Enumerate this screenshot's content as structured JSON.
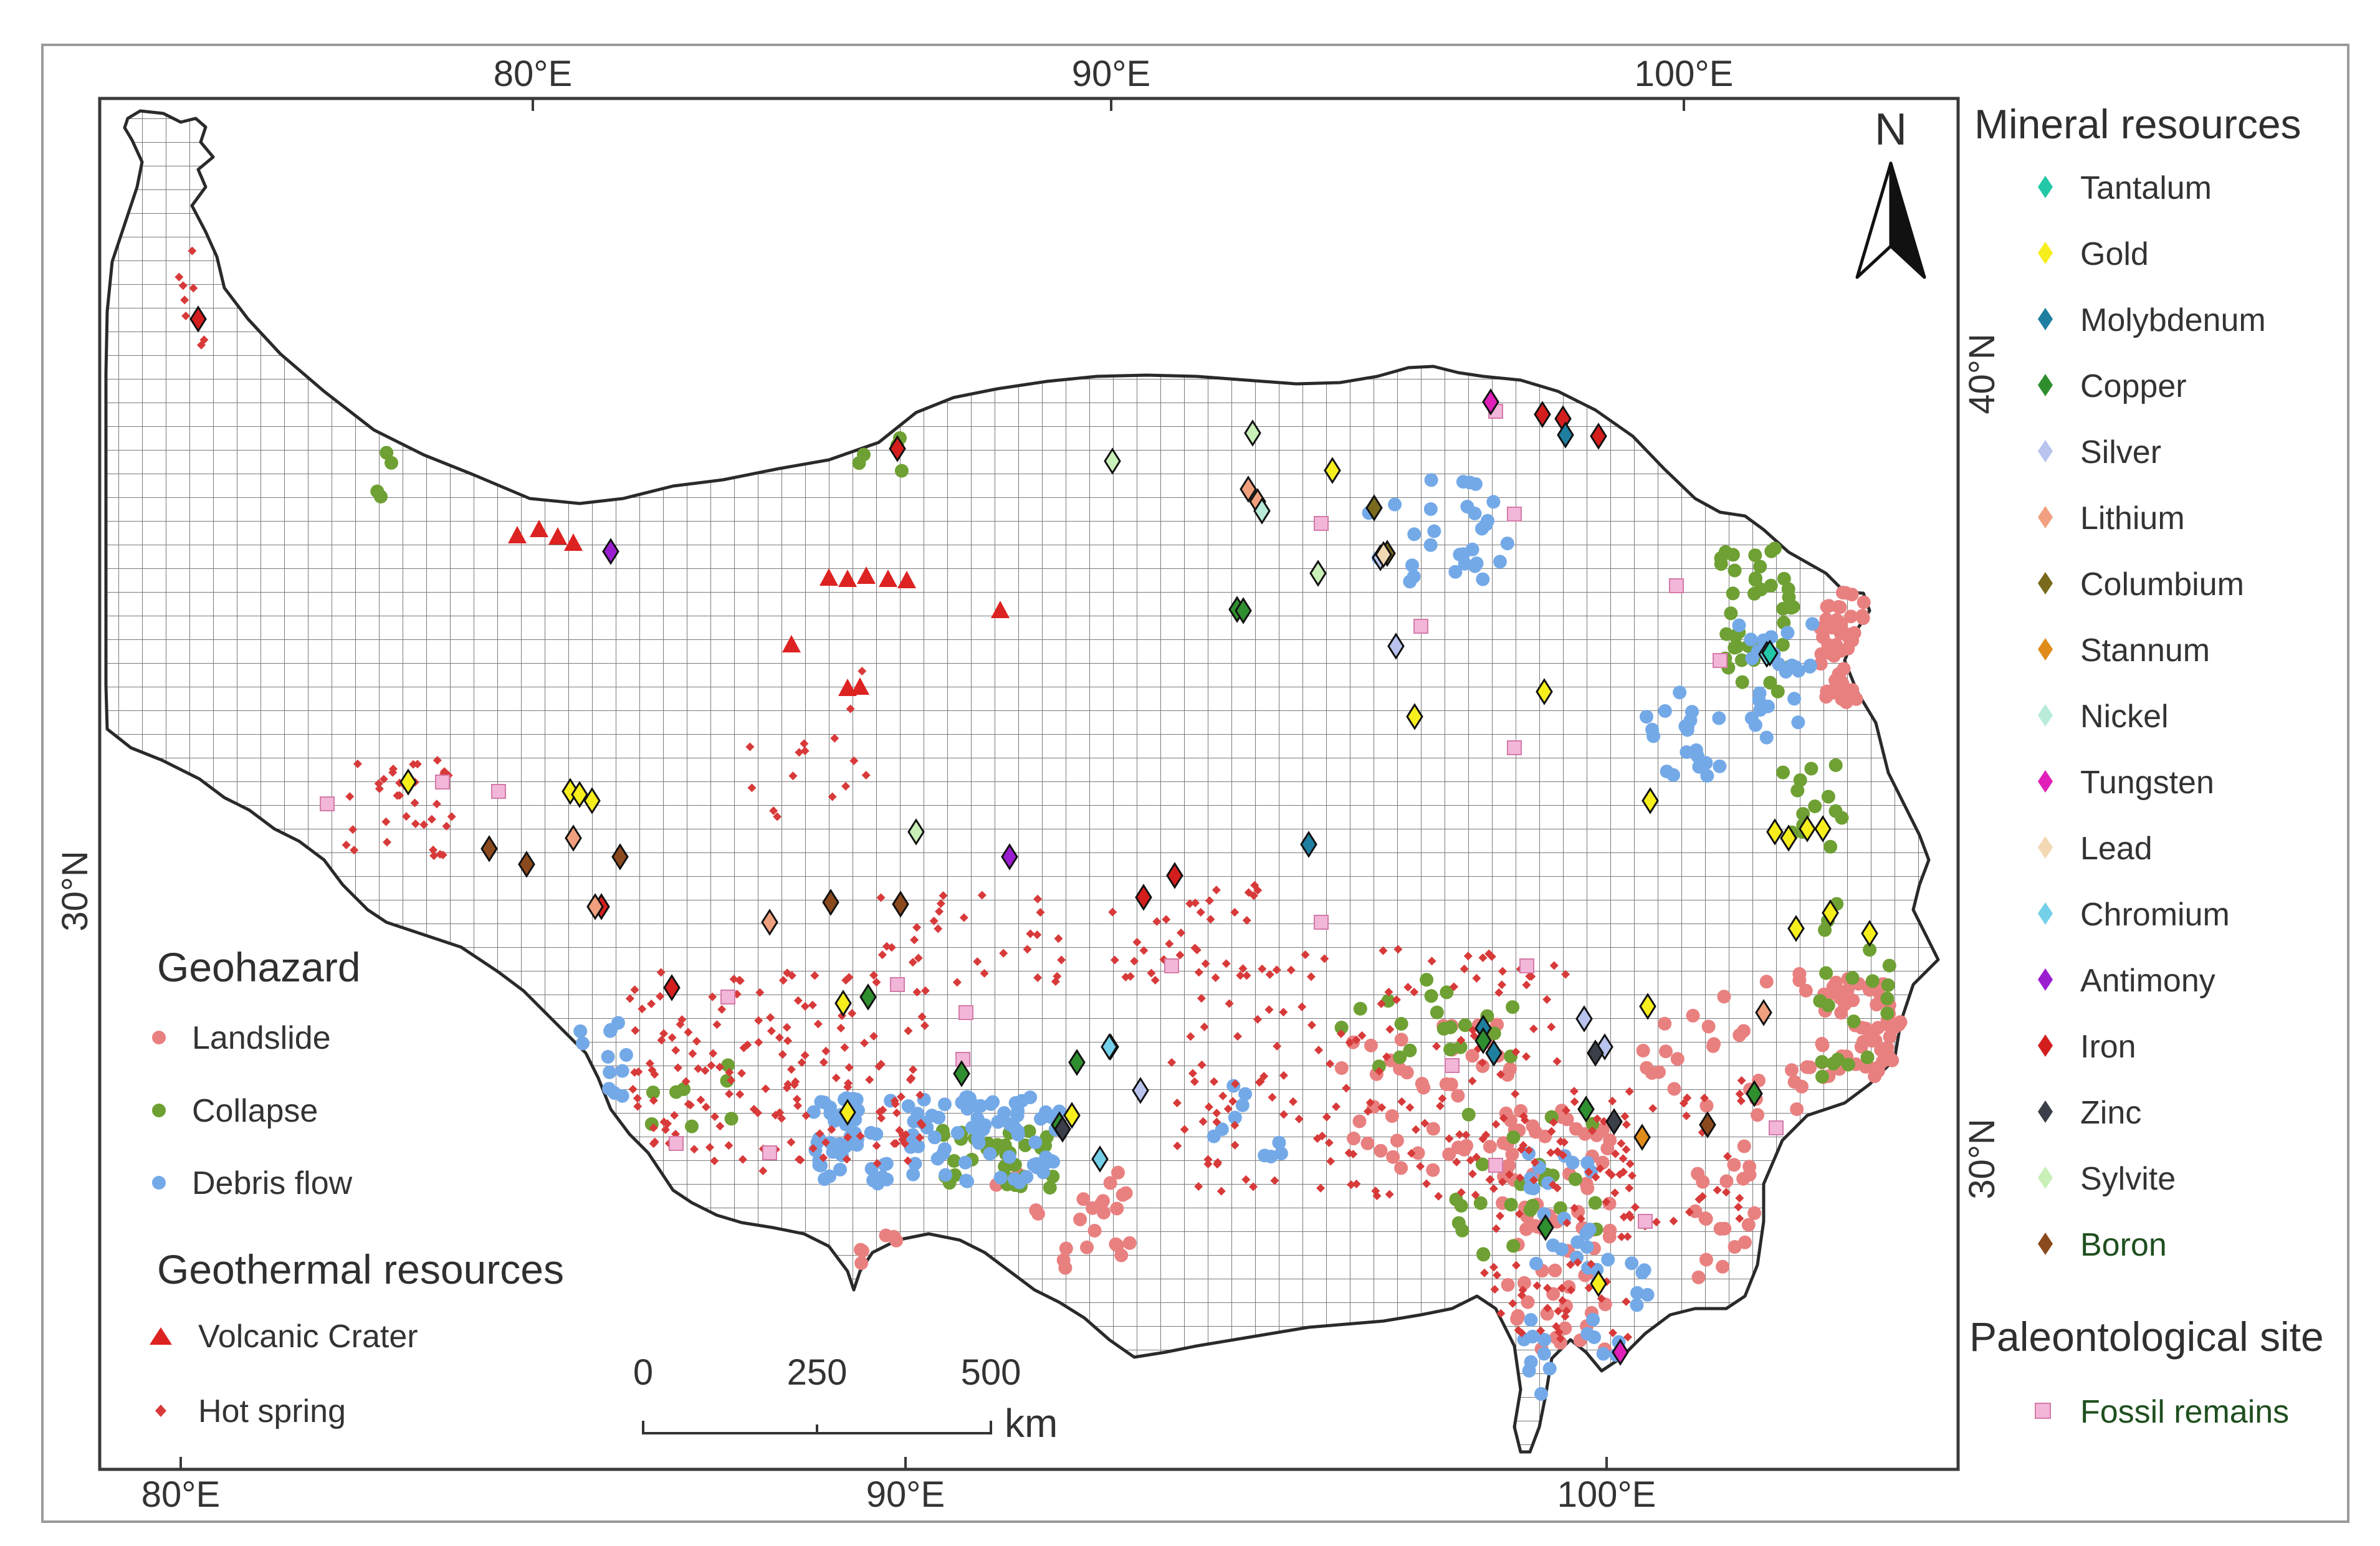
{
  "map": {
    "top_lon_labels": [
      "80°E",
      "90°E",
      "100°E"
    ],
    "bottom_lon_labels": [
      "80°E",
      "90°E",
      "100°E"
    ],
    "left_lat_label": "30°N",
    "right_lat_labels": [
      "40°N",
      "30°N"
    ],
    "north_label": "N",
    "scalebar": {
      "ticks": [
        "0",
        "250",
        "500"
      ],
      "unit": "km"
    }
  },
  "legend": {
    "geohazard": {
      "title": "Geohazard",
      "items": [
        {
          "label": "Landslide",
          "color": "#e98080",
          "symbol": "circle"
        },
        {
          "label": "Collapse",
          "color": "#6ea033",
          "symbol": "circle"
        },
        {
          "label": "Debris flow",
          "color": "#74a9e8",
          "symbol": "circle"
        }
      ]
    },
    "geothermal": {
      "title": "Geothermal resources",
      "items": [
        {
          "label": "Volcanic Crater",
          "color": "#dd2222",
          "symbol": "triangle"
        },
        {
          "label": "Hot spring",
          "color": "#d83a3a",
          "symbol": "small-diamond"
        }
      ]
    },
    "minerals": {
      "title": "Mineral resources",
      "items": [
        {
          "label": "Tantalum",
          "color": "#22c8a8"
        },
        {
          "label": "Gold",
          "color": "#f7ee1e"
        },
        {
          "label": "Molybdenum",
          "color": "#1f7fa0"
        },
        {
          "label": "Copper",
          "color": "#2f8f2f"
        },
        {
          "label": "Silver",
          "color": "#b8c4ee"
        },
        {
          "label": "Lithium",
          "color": "#f0a07e"
        },
        {
          "label": "Columbium",
          "color": "#7a6a1e"
        },
        {
          "label": "Stannum",
          "color": "#e08c1a"
        },
        {
          "label": "Nickel",
          "color": "#b8ecd8"
        },
        {
          "label": "Tungsten",
          "color": "#e020b8"
        },
        {
          "label": "Lead",
          "color": "#f2d9b4"
        },
        {
          "label": "Chromium",
          "color": "#74cfe8"
        },
        {
          "label": "Antimony",
          "color": "#9a1ed0"
        },
        {
          "label": "Iron",
          "color": "#d41e1e"
        },
        {
          "label": "Zinc",
          "color": "#3a3f4a"
        },
        {
          "label": "Sylvite",
          "color": "#c8f0b8"
        },
        {
          "label": "Boron",
          "color": "#8a4a1e"
        }
      ]
    },
    "paleo": {
      "title": "Paleontological site",
      "items": [
        {
          "label": "Fossil remains",
          "color": "#f2b6d8",
          "symbol": "square"
        }
      ]
    }
  }
}
